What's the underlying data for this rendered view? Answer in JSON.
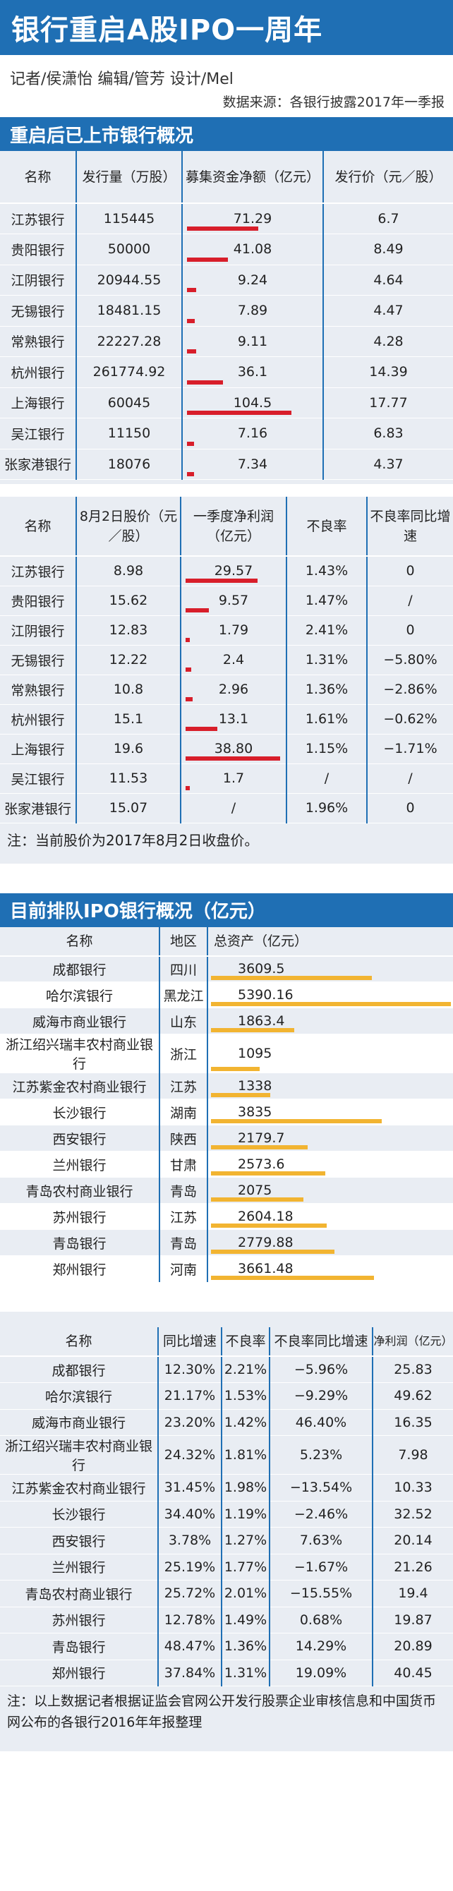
{
  "header": {
    "title": "银行重启A股IPO一周年",
    "credits": "记者/侯潇怡  编辑/管芳  设计/Mel",
    "source": "数据来源：各银行披露2017年一季报"
  },
  "section1": {
    "title": "重启后已上市银行概况",
    "table1": {
      "headers": [
        "名称",
        "发行量（万股）",
        "募集资金净额（亿元）",
        "发行价（元／股）"
      ],
      "rows": [
        {
          "name": "江苏银行",
          "volume": "115445",
          "funds": "71.29",
          "price": "6.7"
        },
        {
          "name": "贵阳银行",
          "volume": "50000",
          "funds": "41.08",
          "price": "8.49"
        },
        {
          "name": "江阴银行",
          "volume": "20944.55",
          "funds": "9.24",
          "price": "4.64"
        },
        {
          "name": "无锡银行",
          "volume": "18481.15",
          "funds": "7.89",
          "price": "4.47"
        },
        {
          "name": "常熟银行",
          "volume": "22227.28",
          "funds": "9.11",
          "price": "4.28"
        },
        {
          "name": "杭州银行",
          "volume": "261774.92",
          "funds": "36.1",
          "price": "14.39"
        },
        {
          "name": "上海银行",
          "volume": "60045",
          "funds": "104.5",
          "price": "17.77"
        },
        {
          "name": "吴江银行",
          "volume": "11150",
          "funds": "7.16",
          "price": "6.83"
        },
        {
          "name": "张家港银行",
          "volume": "18076",
          "funds": "7.34",
          "price": "4.37"
        }
      ]
    },
    "table2": {
      "headers": [
        "名称",
        "8月2日股价（元／股）",
        "一季度净利润（亿元）",
        "不良率",
        "不良率同比增速"
      ],
      "rows": [
        {
          "name": "江苏银行",
          "price": "8.98",
          "profit": "29.57",
          "npl": "1.43%",
          "npl_yoy": "0"
        },
        {
          "name": "贵阳银行",
          "price": "15.62",
          "profit": "9.57",
          "npl": "1.47%",
          "npl_yoy": "/"
        },
        {
          "name": "江阴银行",
          "price": "12.83",
          "profit": "1.79",
          "npl": "2.41%",
          "npl_yoy": "0"
        },
        {
          "name": "无锡银行",
          "price": "12.22",
          "profit": "2.4",
          "npl": "1.31%",
          "npl_yoy": "−5.80%"
        },
        {
          "name": "常熟银行",
          "price": "10.8",
          "profit": "2.96",
          "npl": "1.36%",
          "npl_yoy": "−2.86%"
        },
        {
          "name": "杭州银行",
          "price": "15.1",
          "profit": "13.1",
          "npl": "1.61%",
          "npl_yoy": "−0.62%"
        },
        {
          "name": "上海银行",
          "price": "19.6",
          "profit": "38.80",
          "npl": "1.15%",
          "npl_yoy": "−1.71%"
        },
        {
          "name": "吴江银行",
          "price": "11.53",
          "profit": "1.7",
          "npl": "/",
          "npl_yoy": "/"
        },
        {
          "name": "张家港银行",
          "price": "15.07",
          "profit": "/",
          "npl": "1.96%",
          "npl_yoy": "0"
        }
      ],
      "note": "注：当前股价为2017年8月2日收盘价。"
    }
  },
  "section2": {
    "title": "目前排队IPO银行概况（亿元）",
    "table3": {
      "headers": [
        "名称",
        "地区",
        "总资产（亿元）"
      ],
      "rows": [
        {
          "name": "成都银行",
          "region": "四川",
          "assets": "3609.5"
        },
        {
          "name": "哈尔滨银行",
          "region": "黑龙江",
          "assets": "5390.16"
        },
        {
          "name": "威海市商业银行",
          "region": "山东",
          "assets": "1863.4"
        },
        {
          "name": "浙江绍兴瑞丰农村商业银行",
          "region": "浙江",
          "assets": "1095"
        },
        {
          "name": "江苏紫金农村商业银行",
          "region": "江苏",
          "assets": "1338"
        },
        {
          "name": "长沙银行",
          "region": "湖南",
          "assets": "3835"
        },
        {
          "name": "西安银行",
          "region": "陕西",
          "assets": "2179.7"
        },
        {
          "name": "兰州银行",
          "region": "甘肃",
          "assets": "2573.6"
        },
        {
          "name": "青岛农村商业银行",
          "region": "青岛",
          "assets": "2075"
        },
        {
          "name": "苏州银行",
          "region": "江苏",
          "assets": "2604.18"
        },
        {
          "name": "青岛银行",
          "region": "青岛",
          "assets": "2779.88"
        },
        {
          "name": "郑州银行",
          "region": "河南",
          "assets": "3661.48"
        }
      ]
    },
    "table4": {
      "headers": [
        "名称",
        "同比增速",
        "不良率",
        "不良率同比增速",
        "净利润（亿元）"
      ],
      "rows": [
        {
          "name": "成都银行",
          "growth": "12.30%",
          "npl": "2.21%",
          "npl_yoy": "−5.96%",
          "profit": "25.83"
        },
        {
          "name": "哈尔滨银行",
          "growth": "21.17%",
          "npl": "1.53%",
          "npl_yoy": "−9.29%",
          "profit": "49.62"
        },
        {
          "name": "威海市商业银行",
          "growth": "23.20%",
          "npl": "1.42%",
          "npl_yoy": "46.40%",
          "profit": "16.35"
        },
        {
          "name": "浙江绍兴瑞丰农村商业银行",
          "growth": "24.32%",
          "npl": "1.81%",
          "npl_yoy": "5.23%",
          "profit": "7.98"
        },
        {
          "name": "江苏紫金农村商业银行",
          "growth": "31.45%",
          "npl": "1.98%",
          "npl_yoy": "−13.54%",
          "profit": "10.33"
        },
        {
          "name": "长沙银行",
          "growth": "34.40%",
          "npl": "1.19%",
          "npl_yoy": "−2.46%",
          "profit": "32.52"
        },
        {
          "name": "西安银行",
          "growth": "3.78%",
          "npl": "1.27%",
          "npl_yoy": "7.63%",
          "profit": "20.14"
        },
        {
          "name": "兰州银行",
          "growth": "25.19%",
          "npl": "1.77%",
          "npl_yoy": "−1.67%",
          "profit": "21.26"
        },
        {
          "name": "青岛农村商业银行",
          "growth": "25.72%",
          "npl": "2.01%",
          "npl_yoy": "−15.55%",
          "profit": "19.4"
        },
        {
          "name": "苏州银行",
          "growth": "12.78%",
          "npl": "1.49%",
          "npl_yoy": "0.68%",
          "profit": "19.87"
        },
        {
          "name": "青岛银行",
          "growth": "48.47%",
          "npl": "1.36%",
          "npl_yoy": "14.29%",
          "profit": "20.89"
        },
        {
          "name": "郑州银行",
          "growth": "37.84%",
          "npl": "1.31%",
          "npl_yoy": "19.09%",
          "profit": "40.45"
        }
      ],
      "note": "注：以上数据记者根据证监会官网公开发行股票企业审核信息和中国货币网公布的各银行2016年年报整理"
    }
  },
  "chart_data": [
    {
      "type": "bar",
      "categories": [
        "江苏银行",
        "贵阳银行",
        "江阴银行",
        "无锡银行",
        "常熟银行",
        "杭州银行",
        "上海银行",
        "吴江银行",
        "张家港银行"
      ],
      "values": [
        71.29,
        41.08,
        9.24,
        7.89,
        9.11,
        36.1,
        104.5,
        7.16,
        7.34
      ],
      "title": "",
      "xlabel": "",
      "ylabel": "募集资金净额（亿元）"
    },
    {
      "type": "bar",
      "categories": [
        "江苏银行",
        "贵阳银行",
        "江阴银行",
        "无锡银行",
        "常熟银行",
        "杭州银行",
        "上海银行",
        "吴江银行",
        "张家港银行"
      ],
      "values": [
        29.57,
        9.57,
        1.79,
        2.4,
        2.96,
        13.1,
        38.8,
        1.7,
        null
      ],
      "title": "",
      "xlabel": "",
      "ylabel": "一季度净利润（亿元）"
    },
    {
      "type": "bar",
      "categories": [
        "成都银行",
        "哈尔滨银行",
        "威海市商业银行",
        "浙江绍兴瑞丰农村商业银行",
        "江苏紫金农村商业银行",
        "长沙银行",
        "西安银行",
        "兰州银行",
        "青岛农村商业银行",
        "苏州银行",
        "青岛银行",
        "郑州银行"
      ],
      "values": [
        3609.5,
        5390.16,
        1863.4,
        1095,
        1338,
        3835,
        2179.7,
        2573.6,
        2075,
        2604.18,
        2779.88,
        3661.48
      ],
      "title": "",
      "xlabel": "",
      "ylabel": "总资产（亿元）"
    }
  ],
  "colors": {
    "brand_blue": "#1f6fb4",
    "bar_red": "#d81e2a",
    "bar_gold": "#f2b431",
    "shade": "#e9edf3"
  }
}
